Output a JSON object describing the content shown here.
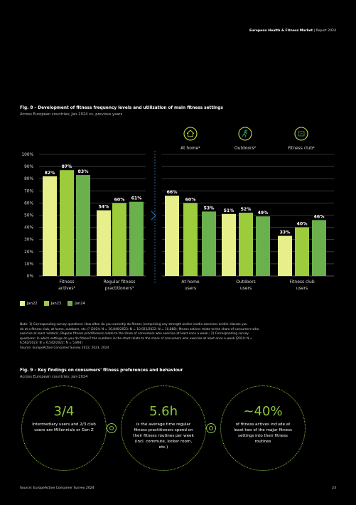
{
  "header": {
    "brand": "European Health & Fitness Market",
    "separator": "|",
    "report": "Report 2024"
  },
  "fig8": {
    "title": "Fig. 8 – Development of fitness frequency levels and utilization of main fitness settings",
    "subtitle": "Across European countries; Jan-2024 vs. previous years",
    "icons": [
      {
        "label": "At home²",
        "icon": "home-icon"
      },
      {
        "label": "Outdoors²",
        "icon": "runner-icon"
      },
      {
        "label": "Fitness club²",
        "icon": "gym-icon"
      }
    ]
  },
  "chart_data": {
    "type": "bar",
    "ylim": [
      0,
      100
    ],
    "yticks": [
      "0%",
      "10%",
      "20%",
      "30%",
      "40%",
      "50%",
      "60%",
      "70%",
      "80%",
      "90%",
      "100%"
    ],
    "panels": [
      {
        "categories": [
          "Fitness actives¹",
          "Regular fitness practitioners¹"
        ]
      },
      {
        "categories": [
          "At home users",
          "Outdoors users",
          "Fitness club users"
        ]
      }
    ],
    "series": [
      {
        "name": "Jan22",
        "color": "#e6ef8a",
        "values": [
          82,
          54,
          66,
          51,
          33
        ]
      },
      {
        "name": "Jan23",
        "color": "#9ccc3c",
        "values": [
          87,
          60,
          60,
          52,
          40
        ]
      },
      {
        "name": "Jan24",
        "color": "#6ab04c",
        "values": [
          83,
          61,
          53,
          49,
          46
        ]
      }
    ],
    "gridlines": true,
    "legend_position": "bottom-left"
  },
  "note": {
    "lines": [
      "Note: 1) Corresponding survey questions: How often do you currently do fitness (comprising any strength and/or cardio exercises and/or classes you",
      "do at a fitness club, at home, outdoors, etc.)? (2024: N = 10,840/2023: N = 10,923/2022: N = 10,888), fitness actives relate to the share of consumers who",
      "exercise at least 'seldom', Regular fitness practitioners relate to the share of consumers who exercise at least once a week.; 2) Corresponding survey",
      "questions: In which settings do you do fitness? the numbers in the chart relate to the share of consumers who exercise at least once a week (2024: N =",
      "6,562/2023: N = 6,542/2022: N = 5,894)",
      "Source: EuropeActive Consumer Survey 2022, 2023, 2024"
    ]
  },
  "fig9": {
    "title": "Fig. 9 – Key findings on consumers' fitness preferences and behaviour",
    "subtitle": "Across European countries; Jan-2024",
    "findings": [
      {
        "big": "3/4",
        "text": "Intermediary users and 2/3 club users are Millennials or Gen Z"
      },
      {
        "big": "5.6h",
        "text": "is the average time regular fitness practitioners spend on their fitness routines per week (incl. commute, locker room, etc.)"
      },
      {
        "big": "~40%",
        "text": "of fitness actives include at least two of the major fitness settings into their fitness routines"
      }
    ]
  },
  "footer": {
    "source": "Source: EuropeActive Consumer Survey 2024",
    "page": "23"
  }
}
